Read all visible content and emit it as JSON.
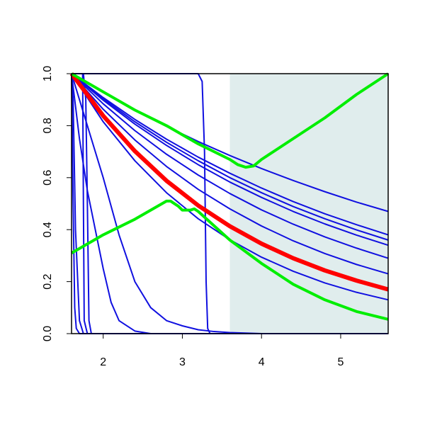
{
  "chart_data": {
    "type": "line",
    "xlim": [
      1.6,
      5.6
    ],
    "ylim": [
      0,
      1
    ],
    "xticks": [
      2,
      3,
      4,
      5
    ],
    "yticks": [
      {
        "value": 0,
        "label": "0.0"
      },
      0.2,
      0.4,
      0.6,
      0.8,
      {
        "value": 1,
        "label": "1.0"
      }
    ],
    "highlight_xlim": [
      3.6,
      5.6
    ],
    "highlight_color": "#e0eded",
    "series": [
      {
        "color": "#1010e0",
        "x": [
          1.6,
          1.62,
          1.64,
          1.66,
          1.7,
          5.6
        ],
        "values": [
          1,
          0.5,
          0.1,
          0.02,
          0,
          0
        ]
      },
      {
        "color": "#1010e0",
        "x": [
          1.6,
          1.62,
          1.65,
          1.7,
          1.75,
          5.6
        ],
        "values": [
          1,
          0.9,
          0.4,
          0.05,
          0,
          0
        ]
      },
      {
        "color": "#1010e0",
        "x": [
          1.6,
          1.74,
          1.75,
          1.76,
          1.8,
          5.6
        ],
        "values": [
          1,
          1,
          0.5,
          0.05,
          0,
          0
        ]
      },
      {
        "color": "#1010e0",
        "x": [
          1.6,
          1.75,
          1.78,
          1.8,
          1.82,
          1.85,
          5.6
        ],
        "values": [
          1,
          1,
          0.9,
          0.5,
          0.05,
          0,
          0
        ]
      },
      {
        "color": "#1010e0",
        "x": [
          1.6,
          1.7,
          1.8,
          1.9,
          2.0,
          2.1,
          2.2,
          2.4,
          2.6,
          5.6
        ],
        "values": [
          1,
          0.75,
          0.55,
          0.4,
          0.25,
          0.12,
          0.05,
          0.01,
          0,
          0
        ]
      },
      {
        "color": "#1010e0",
        "x": [
          1.6,
          1.8,
          2.0,
          2.2,
          2.4,
          2.6,
          2.8,
          3.0,
          3.2,
          3.4,
          3.6,
          4.0,
          5.6
        ],
        "values": [
          1,
          0.8,
          0.6,
          0.38,
          0.2,
          0.1,
          0.05,
          0.03,
          0.015,
          0.008,
          0.004,
          0,
          0
        ]
      },
      {
        "color": "#1010e0",
        "x": [
          1.6,
          3.2,
          3.25,
          3.28,
          3.3,
          3.32,
          3.35,
          5.6
        ],
        "values": [
          1,
          1,
          0.97,
          0.7,
          0.2,
          0.02,
          0,
          0
        ]
      },
      {
        "color": "#1010e0",
        "x": [
          1.6,
          2.0,
          2.4,
          2.8,
          3.2,
          3.6,
          4.0,
          4.4,
          4.8,
          5.2,
          5.6
        ],
        "values": [
          1,
          0.927,
          0.86,
          0.797,
          0.739,
          0.685,
          0.635,
          0.589,
          0.546,
          0.506,
          0.47
        ]
      },
      {
        "color": "#1010e0",
        "x": [
          1.6,
          2.0,
          2.4,
          2.8,
          3.2,
          3.6,
          4.0,
          4.4,
          4.8,
          5.2,
          5.6
        ],
        "values": [
          1,
          0.908,
          0.824,
          0.748,
          0.679,
          0.617,
          0.56,
          0.508,
          0.461,
          0.419,
          0.38
        ]
      },
      {
        "color": "#1010e0",
        "x": [
          1.6,
          2.0,
          2.4,
          2.8,
          3.2,
          3.6,
          4.0,
          4.4,
          4.8,
          5.2,
          5.6
        ],
        "values": [
          1,
          0.903,
          0.815,
          0.736,
          0.665,
          0.6,
          0.542,
          0.489,
          0.442,
          0.399,
          0.36
        ]
      },
      {
        "color": "#1010e0",
        "x": [
          1.6,
          2.0,
          2.4,
          2.8,
          3.2,
          3.6,
          4.0,
          4.4,
          4.8,
          5.2,
          5.6
        ],
        "values": [
          1,
          0.898,
          0.806,
          0.724,
          0.65,
          0.583,
          0.524,
          0.47,
          0.422,
          0.379,
          0.34
        ]
      },
      {
        "color": "#1010e0",
        "x": [
          1.6,
          2.0,
          2.4,
          2.8,
          3.2,
          3.6,
          4.0,
          4.4,
          4.8,
          5.2,
          5.6
        ],
        "values": [
          1,
          0.884,
          0.781,
          0.69,
          0.61,
          0.539,
          0.476,
          0.421,
          0.372,
          0.329,
          0.29
        ]
      },
      {
        "color": "#1010e0",
        "x": [
          1.6,
          2.0,
          2.4,
          2.8,
          3.2,
          3.6,
          4.0,
          4.4,
          4.8,
          5.2,
          5.6
        ],
        "values": [
          1,
          0.863,
          0.745,
          0.643,
          0.555,
          0.48,
          0.414,
          0.357,
          0.308,
          0.266,
          0.23
        ]
      },
      {
        "color": "#1010e0",
        "x": [
          1.6,
          2.0,
          2.4,
          2.8,
          3.2,
          3.6,
          4.0,
          4.4,
          4.8,
          5.2,
          5.6
        ],
        "values": [
          1,
          0.815,
          0.665,
          0.542,
          0.442,
          0.361,
          0.294,
          0.24,
          0.195,
          0.159,
          0.13
        ]
      },
      {
        "color": "#ff0000",
        "x": [
          1.6,
          2.0,
          2.4,
          2.8,
          3.2,
          3.6,
          4.0,
          4.4,
          4.8,
          5.2,
          5.6
        ],
        "values": [
          1,
          0.838,
          0.702,
          0.588,
          0.493,
          0.413,
          0.346,
          0.29,
          0.243,
          0.204,
          0.17
        ]
      },
      {
        "color": "#00ee00",
        "x": [
          1.6,
          2.0,
          2.4,
          2.8,
          3.2,
          3.6,
          3.7,
          3.8,
          3.9,
          4.0,
          4.4,
          4.8,
          5.2,
          5.6
        ],
        "values": [
          1,
          0.93,
          0.86,
          0.8,
          0.73,
          0.67,
          0.65,
          0.64,
          0.645,
          0.67,
          0.75,
          0.83,
          0.92,
          1
        ]
      },
      {
        "color": "#00ee00",
        "x": [
          1.6,
          2.0,
          2.4,
          2.8,
          2.85,
          2.95,
          3.0,
          3.1,
          3.15,
          3.2,
          3.6,
          4.0,
          4.4,
          4.8,
          5.2,
          5.6
        ],
        "values": [
          0.31,
          0.38,
          0.44,
          0.51,
          0.51,
          0.49,
          0.475,
          0.475,
          0.48,
          0.47,
          0.36,
          0.27,
          0.19,
          0.13,
          0.085,
          0.055
        ]
      }
    ]
  }
}
